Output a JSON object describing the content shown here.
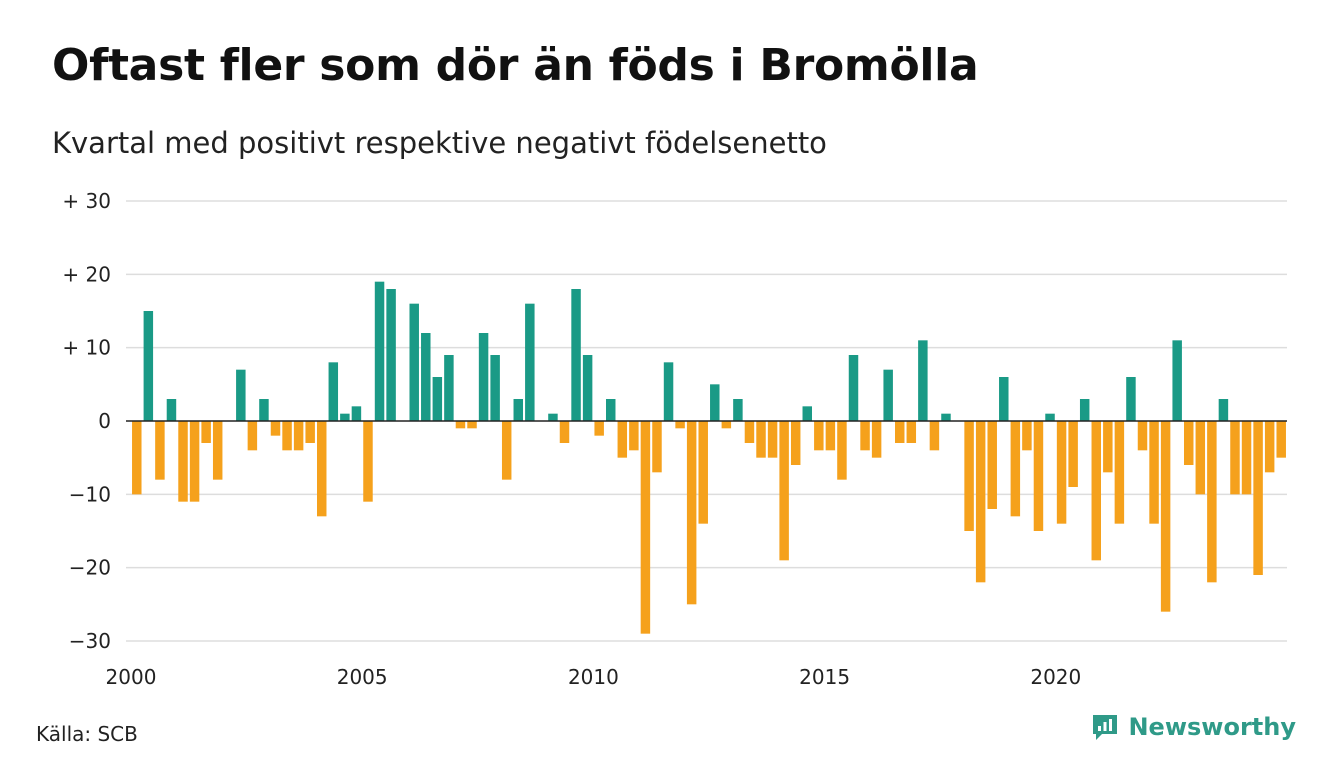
{
  "title": "Oftast fler som dör än föds i Bromölla",
  "subtitle": "Kvartal med positivt respektive negativt födelsenetto",
  "source": "Källa: SCB",
  "brand": {
    "name": "Newsworthy",
    "icon": "newsworthy-logo-icon"
  },
  "colors": {
    "positive": "#1a9a86",
    "negative": "#f5a11c",
    "grid": "#dddddd",
    "zero": "#222222"
  },
  "chart_data": {
    "type": "bar",
    "x_start": 2000,
    "period": "quarter",
    "ylim": [
      -30,
      30
    ],
    "yticks": [
      {
        "value": 30,
        "label": "+ 30"
      },
      {
        "value": 20,
        "label": "+ 20"
      },
      {
        "value": 10,
        "label": "+ 10"
      },
      {
        "value": 0,
        "label": "0"
      },
      {
        "value": -10,
        "label": "−10"
      },
      {
        "value": -20,
        "label": "−20"
      },
      {
        "value": -30,
        "label": "−30"
      }
    ],
    "xticks": [
      {
        "value": 2000,
        "label": "2000"
      },
      {
        "value": 2005,
        "label": "2005"
      },
      {
        "value": 2010,
        "label": "2010"
      },
      {
        "value": 2015,
        "label": "2015"
      },
      {
        "value": 2020,
        "label": "2020"
      }
    ],
    "grid": true,
    "legend": "none",
    "values": [
      -10,
      15,
      -8,
      3,
      -11,
      -11,
      -3,
      -8,
      0,
      7,
      -4,
      3,
      -2,
      -4,
      -4,
      -3,
      -13,
      8,
      1,
      2,
      -11,
      19,
      18,
      0,
      16,
      12,
      6,
      9,
      -1,
      -1,
      12,
      9,
      -8,
      3,
      16,
      0,
      1,
      -3,
      18,
      9,
      -2,
      3,
      -5,
      -4,
      -29,
      -7,
      8,
      -1,
      -25,
      -14,
      5,
      -1,
      3,
      -3,
      -5,
      -5,
      -19,
      -6,
      2,
      -4,
      -4,
      -8,
      9,
      -4,
      -5,
      7,
      -3,
      -3,
      11,
      -4,
      1,
      0,
      -15,
      -22,
      -12,
      6,
      -13,
      -4,
      -15,
      1,
      -14,
      -9,
      3,
      -19,
      -7,
      -14,
      6,
      -4,
      -14,
      -26,
      11,
      -6,
      -10,
      -22,
      3,
      -10,
      -10,
      -21,
      -7,
      -5
    ]
  }
}
